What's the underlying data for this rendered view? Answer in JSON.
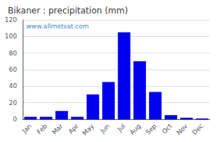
{
  "chart_data": {
    "type": "bar",
    "title": "Bikaner : precipitation (mm)",
    "categories": [
      "Jan",
      "Feb",
      "Mar",
      "Apr",
      "May",
      "Jun",
      "Jul",
      "Aug",
      "Sep",
      "Oct",
      "Nov",
      "Dec"
    ],
    "values": [
      3,
      3,
      10,
      3,
      30,
      45,
      105,
      70,
      33,
      5,
      2,
      1
    ],
    "color": "#0000ee",
    "ylim": [
      0,
      120
    ],
    "yticks": [
      0,
      20,
      40,
      60,
      80,
      100,
      120
    ],
    "grid": true,
    "annotations": [
      "www.allmetsat.com"
    ]
  }
}
